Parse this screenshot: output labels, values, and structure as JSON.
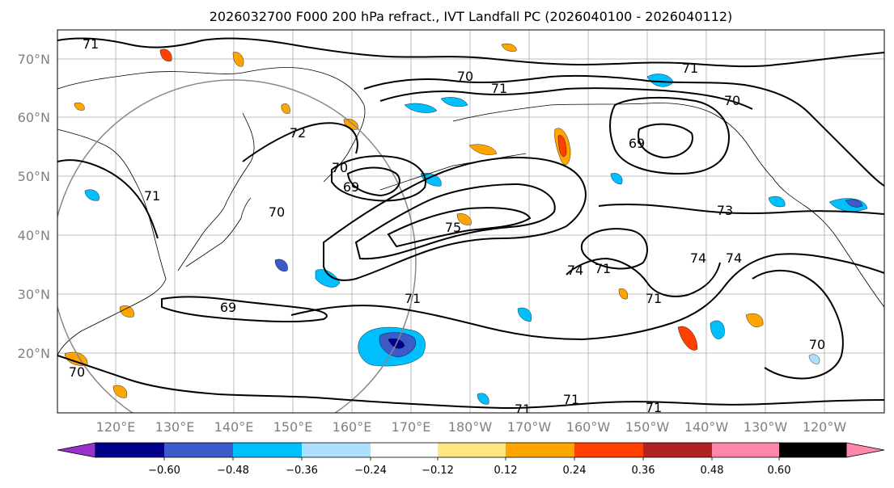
{
  "title": "2026032700 F000 200 hPa refract., IVT Landfall PC (2026040100 - 2026040112)",
  "lat_labels": [
    "70°N",
    "60°N",
    "50°N",
    "40°N",
    "30°N",
    "20°N"
  ],
  "lon_labels": [
    "120°E",
    "130°E",
    "140°E",
    "150°E",
    "160°E",
    "170°E",
    "180°W",
    "170°W",
    "160°W",
    "150°W",
    "140°W",
    "130°W",
    "120°W"
  ],
  "colorbar": {
    "ticks": [
      "−0.60",
      "−0.48",
      "−0.36",
      "−0.24",
      "−0.12",
      "0.12",
      "0.24",
      "0.36",
      "0.48",
      "0.60"
    ],
    "colors": [
      "#9932CC",
      "#00008B",
      "#3A5BC8",
      "#00BFFF",
      "#ADDFFF",
      "#FFFFFF",
      "#FFE680",
      "#FFA500",
      "#FF4000",
      "#B22222",
      "#FF88AA"
    ]
  },
  "contour_labels": [
    "71",
    "70",
    "71",
    "71",
    "70",
    "69",
    "72",
    "70",
    "69",
    "71",
    "70",
    "75",
    "74",
    "71",
    "73",
    "74",
    "74",
    "71",
    "69",
    "71",
    "71",
    "71",
    "71",
    "70",
    "70"
  ]
}
